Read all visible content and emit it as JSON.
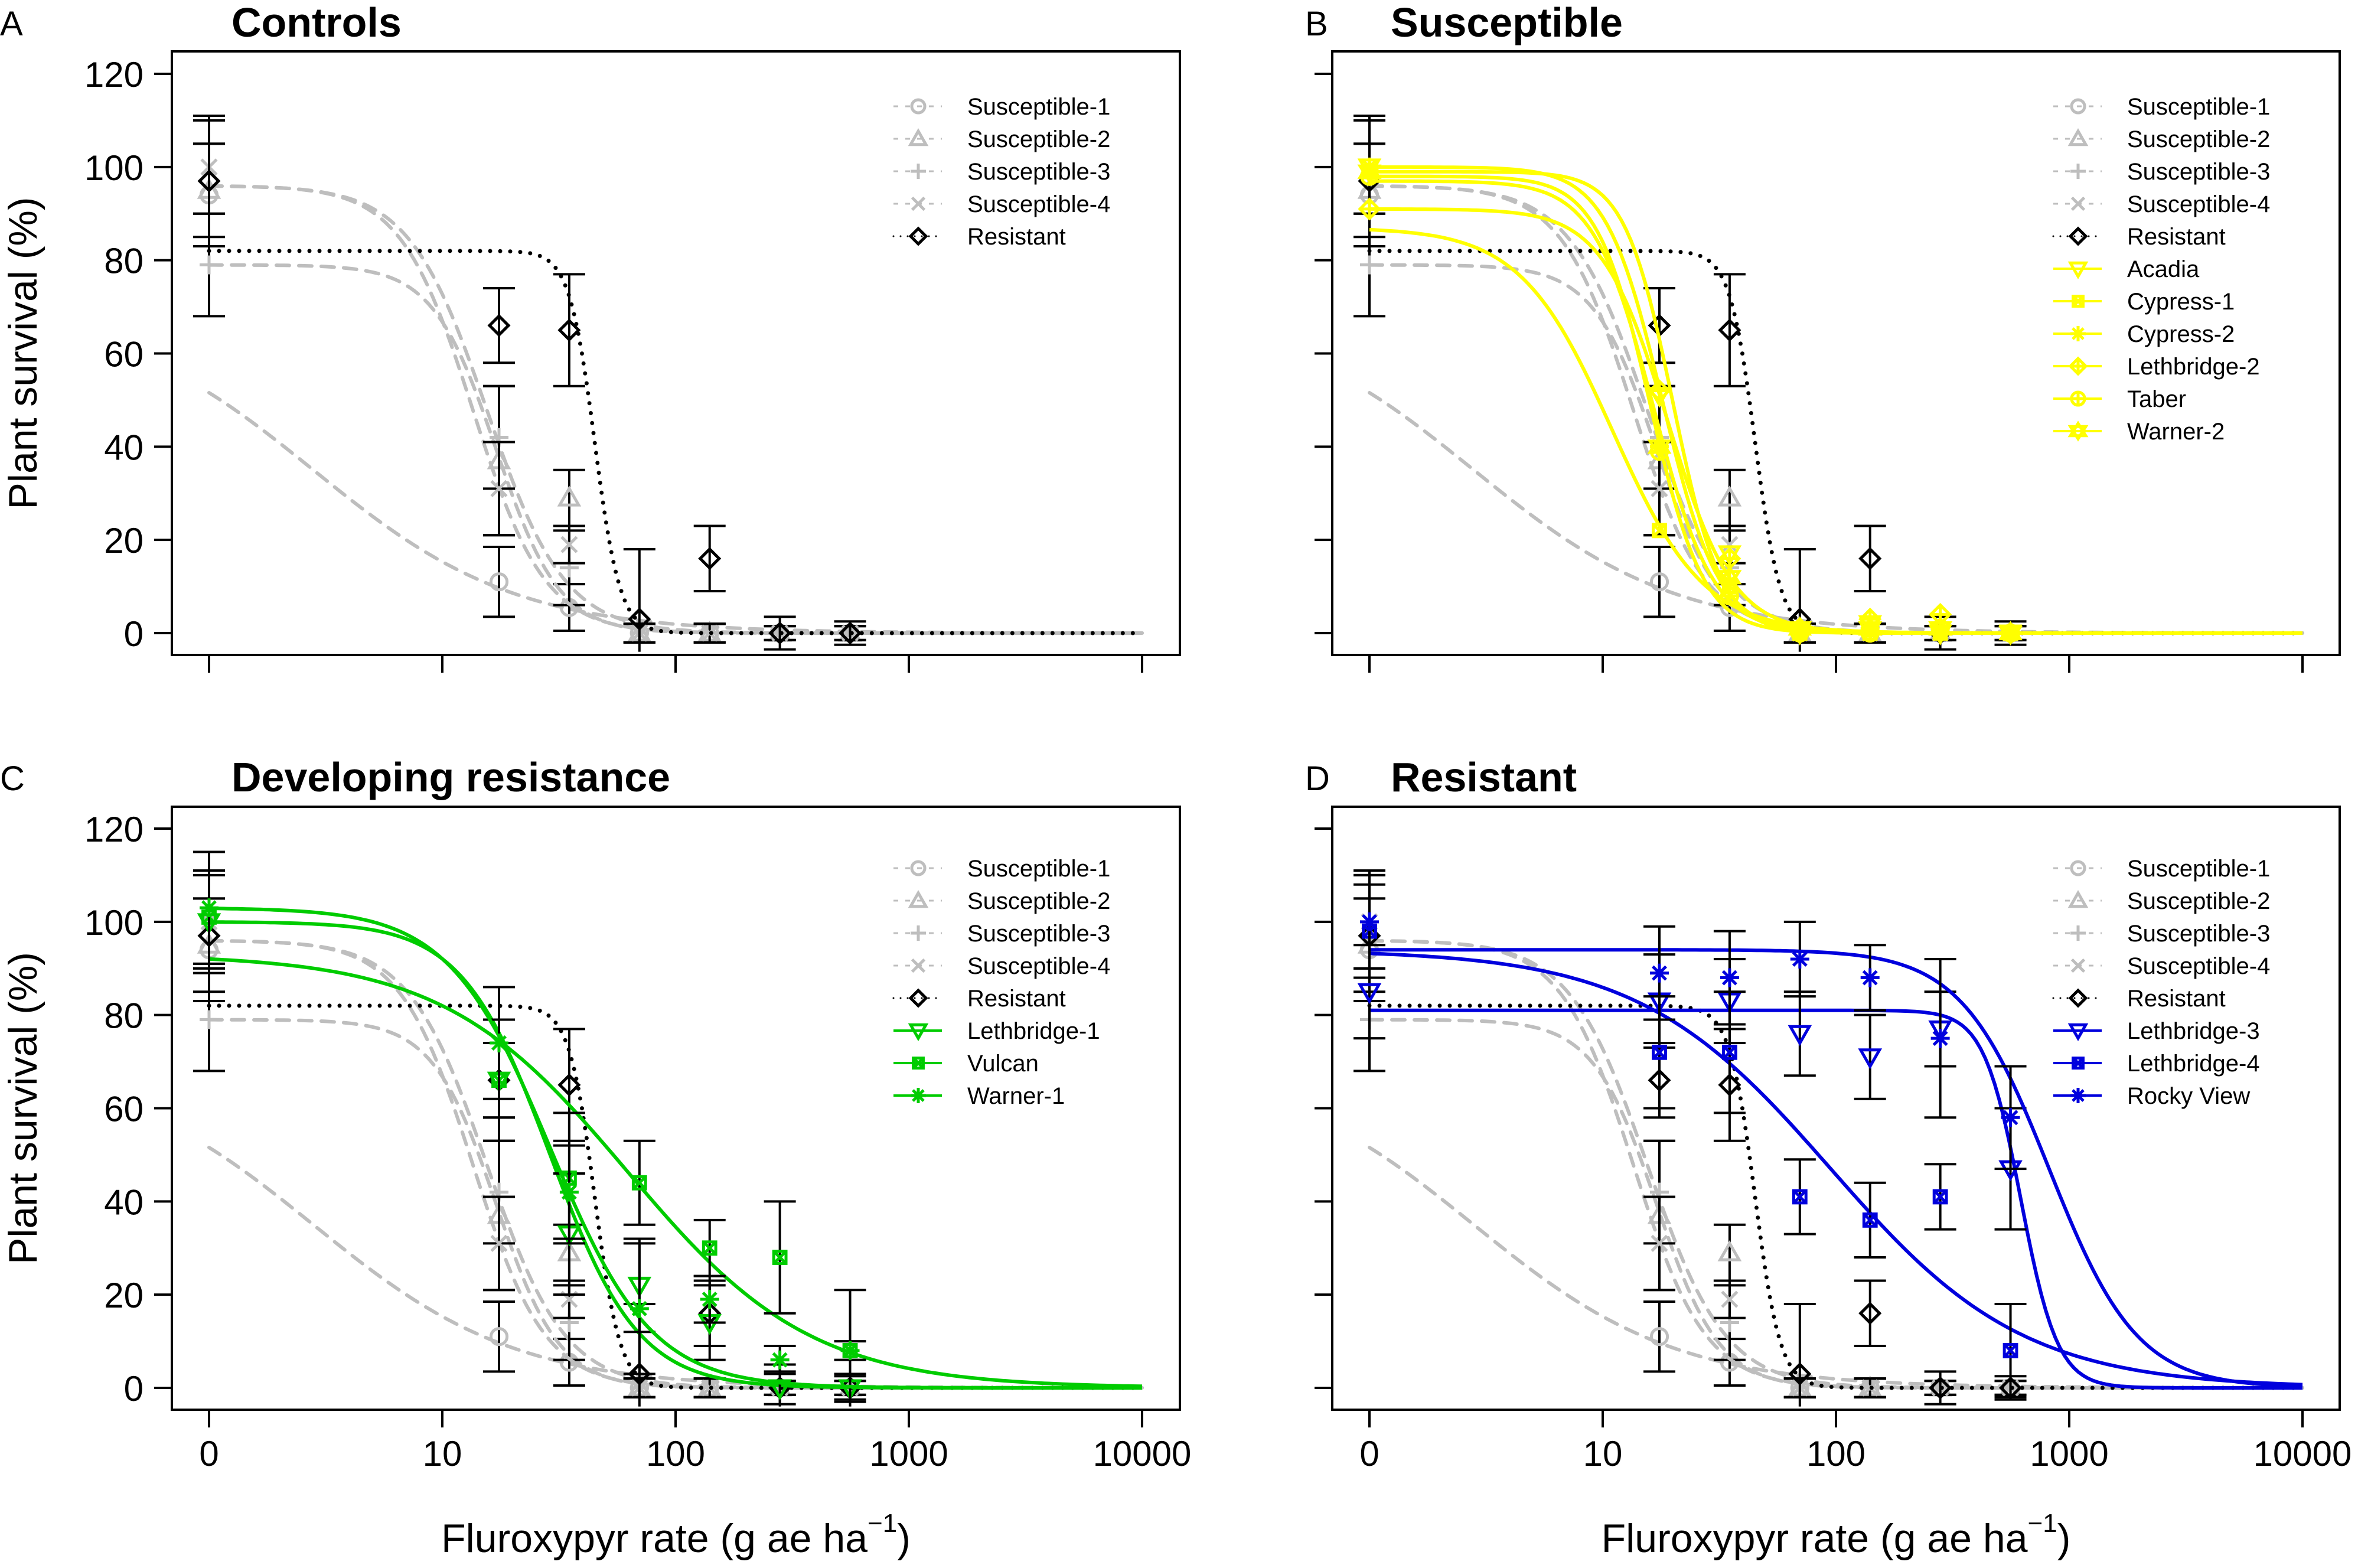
{
  "figure": {
    "description": "Dose-response of Kochia plant survival to fluroxypyr",
    "xlabel_main": "Fluroxypyr rate (g ae ha",
    "xlabel_sup": "−1",
    "xlabel_close": ")",
    "ylabel": "Plant survival (%)"
  },
  "chart_data": [
    {
      "panel": "A",
      "type": "line",
      "title": "Controls",
      "xlabel": "Fluroxypyr rate (g ae ha⁻¹)",
      "ylabel": "Plant survival (%)",
      "xscale": "log",
      "xlim": [
        1,
        10000
      ],
      "ylim": [
        0,
        120
      ],
      "xticks": [
        {
          "v": 1,
          "label": "0"
        },
        {
          "v": 10,
          "label": "10"
        },
        {
          "v": 100,
          "label": "100"
        },
        {
          "v": 1000,
          "label": "1000"
        },
        {
          "v": 10000,
          "label": "10000"
        }
      ],
      "yticks": [
        0,
        20,
        40,
        60,
        80,
        100,
        120
      ],
      "show_xtick_labels": false,
      "show_ytick_labels": true,
      "show_ylabel": true,
      "show_xlabel": false,
      "legend_position": "top-right",
      "series_refs": [
        "S1",
        "S2",
        "S3",
        "S4",
        "R"
      ]
    },
    {
      "panel": "B",
      "type": "line",
      "title": "Susceptible",
      "xlabel": "Fluroxypyr rate (g ae ha⁻¹)",
      "ylabel": "Plant survival (%)",
      "xscale": "log",
      "xlim": [
        1,
        10000
      ],
      "ylim": [
        0,
        120
      ],
      "xticks": [
        {
          "v": 1,
          "label": "0"
        },
        {
          "v": 10,
          "label": "10"
        },
        {
          "v": 100,
          "label": "100"
        },
        {
          "v": 1000,
          "label": "1000"
        },
        {
          "v": 10000,
          "label": "10000"
        }
      ],
      "yticks": [
        0,
        20,
        40,
        60,
        80,
        100,
        120
      ],
      "show_xtick_labels": false,
      "show_ytick_labels": false,
      "show_ylabel": false,
      "show_xlabel": false,
      "legend_position": "top-right",
      "series_refs": [
        "S1",
        "S2",
        "S3",
        "S4",
        "R",
        "Acadia",
        "Cypress-1",
        "Cypress-2",
        "Lethbridge-2",
        "Taber",
        "Warner-2"
      ]
    },
    {
      "panel": "C",
      "type": "line",
      "title": "Developing resistance",
      "xlabel": "Fluroxypyr rate (g ae ha⁻¹)",
      "ylabel": "Plant survival (%)",
      "xscale": "log",
      "xlim": [
        1,
        10000
      ],
      "ylim": [
        0,
        120
      ],
      "xticks": [
        {
          "v": 1,
          "label": "0"
        },
        {
          "v": 10,
          "label": "10"
        },
        {
          "v": 100,
          "label": "100"
        },
        {
          "v": 1000,
          "label": "1000"
        },
        {
          "v": 10000,
          "label": "10000"
        }
      ],
      "yticks": [
        0,
        20,
        40,
        60,
        80,
        100,
        120
      ],
      "show_xtick_labels": true,
      "show_ytick_labels": true,
      "show_ylabel": true,
      "show_xlabel": true,
      "legend_position": "top-right",
      "series_refs": [
        "S1",
        "S2",
        "S3",
        "S4",
        "R",
        "Lethbridge-1",
        "Vulcan",
        "Warner-1"
      ]
    },
    {
      "panel": "D",
      "type": "line",
      "title": "Resistant",
      "xlabel": "Fluroxypyr rate (g ae ha⁻¹)",
      "ylabel": "Plant survival (%)",
      "xscale": "log",
      "xlim": [
        1,
        10000
      ],
      "ylim": [
        0,
        120
      ],
      "xticks": [
        {
          "v": 1,
          "label": "0"
        },
        {
          "v": 10,
          "label": "10"
        },
        {
          "v": 100,
          "label": "100"
        },
        {
          "v": 1000,
          "label": "1000"
        },
        {
          "v": 10000,
          "label": "10000"
        }
      ],
      "yticks": [
        0,
        20,
        40,
        60,
        80,
        100,
        120
      ],
      "show_xtick_labels": true,
      "show_ytick_labels": false,
      "show_ylabel": false,
      "show_xlabel": true,
      "legend_position": "top-right",
      "series_refs": [
        "S1",
        "S2",
        "S3",
        "S4",
        "R",
        "Lethbridge-3",
        "Lethbridge-4",
        "Rocky View"
      ]
    }
  ],
  "doses": [
    0,
    17.5,
    35,
    70,
    140,
    280,
    560
  ],
  "series": {
    "S1": {
      "name": "Susceptible-1",
      "color": "#bebebe",
      "line": "dashed",
      "marker": "circle",
      "values": [
        94,
        11,
        5.5,
        0,
        0,
        0,
        0
      ],
      "err": [
        11,
        7.5,
        5,
        2,
        2,
        1.5,
        1.5
      ],
      "curve": {
        "upper": 70,
        "ed50": 2.8,
        "slope": 1.0
      }
    },
    "S2": {
      "name": "Susceptible-2",
      "color": "#bebebe",
      "line": "dashed",
      "marker": "triangle-up",
      "values": [
        95,
        37,
        29,
        0,
        0,
        0,
        0
      ],
      "err": [
        10,
        16,
        6,
        2,
        2,
        1.5,
        1.5
      ],
      "curve": {
        "upper": 96,
        "ed50": 15.5,
        "slope": 2.6
      }
    },
    "S3": {
      "name": "Susceptible-3",
      "color": "#bebebe",
      "line": "dashed",
      "marker": "plus",
      "values": [
        79,
        42,
        14,
        0,
        0,
        0,
        0
      ],
      "err": [
        11,
        11,
        8,
        2,
        2,
        1.5,
        1.5
      ],
      "curve": {
        "upper": 79,
        "ed50": 17,
        "slope": 3.2
      }
    },
    "S4": {
      "name": "Susceptible-4",
      "color": "#bebebe",
      "line": "dashed",
      "marker": "x",
      "values": [
        100,
        31,
        19,
        0,
        0,
        0,
        0
      ],
      "err": [
        10,
        10,
        4,
        2,
        2,
        1.5,
        1.5
      ],
      "curve": {
        "upper": 96,
        "ed50": 13.5,
        "slope": 2.8
      }
    },
    "R": {
      "name": "Resistant",
      "color": "#000000",
      "line": "dotted",
      "marker": "diamond",
      "values": [
        97,
        66,
        65,
        3,
        16,
        0,
        0
      ],
      "err": [
        14,
        8,
        12,
        15,
        7,
        3.5,
        2.5
      ],
      "curve": {
        "upper": 82,
        "ed50": 45,
        "slope": 8
      }
    },
    "Acadia": {
      "name": "Acadia",
      "color": "#ffff00",
      "line": "solid",
      "marker": "triangle-down",
      "values": [
        100,
        51,
        17,
        0,
        2,
        0,
        0
      ],
      "err": [
        0,
        0,
        0,
        0,
        0,
        0,
        0
      ],
      "curve": {
        "upper": 100,
        "ed50": 18,
        "slope": 3.6
      }
    },
    "Cypress-1": {
      "name": "Cypress-1",
      "color": "#ffff00",
      "line": "solid",
      "marker": "square-x",
      "values": [
        99,
        22,
        10,
        0,
        0,
        0,
        0
      ],
      "err": [
        0,
        0,
        0,
        0,
        0,
        0,
        0
      ],
      "curve": {
        "upper": 87,
        "ed50": 11,
        "slope": 2.2
      }
    },
    "Cypress-2": {
      "name": "Cypress-2",
      "color": "#ffff00",
      "line": "solid",
      "marker": "asterisk",
      "values": [
        100,
        40,
        11,
        1,
        1,
        0,
        0
      ],
      "err": [
        0,
        0,
        0,
        0,
        0,
        0,
        0
      ],
      "curve": {
        "upper": 98,
        "ed50": 16,
        "slope": 3.8
      }
    },
    "Lethbridge-2": {
      "name": "Lethbridge-2",
      "color": "#ffff00",
      "line": "solid",
      "marker": "diamond-plus",
      "values": [
        91,
        52,
        16,
        1,
        3,
        4,
        0
      ],
      "err": [
        0,
        0,
        0,
        0,
        0,
        0,
        0
      ],
      "curve": {
        "upper": 91,
        "ed50": 19,
        "slope": 3.1
      }
    },
    "Taber": {
      "name": "Taber",
      "color": "#ffff00",
      "line": "solid",
      "marker": "circle-plus",
      "values": [
        98,
        39,
        8,
        0,
        0,
        1,
        0
      ],
      "err": [
        0,
        0,
        0,
        0,
        0,
        0,
        0
      ],
      "curve": {
        "upper": 97,
        "ed50": 16.5,
        "slope": 3.4
      }
    },
    "Warner-2": {
      "name": "Warner-2",
      "color": "#ffff00",
      "line": "solid",
      "marker": "star-of-david",
      "values": [
        99,
        40,
        12,
        1,
        1,
        1,
        0
      ],
      "err": [
        0,
        0,
        0,
        0,
        0,
        0,
        0
      ],
      "curve": {
        "upper": 99,
        "ed50": 20,
        "slope": 4.2
      }
    },
    "Lethbridge-1": {
      "name": "Lethbridge-1",
      "color": "#00cc00",
      "line": "solid",
      "marker": "triangle-down",
      "values": [
        100,
        66,
        33,
        22,
        14,
        0,
        0
      ],
      "err": [
        11,
        13,
        13,
        10,
        8,
        5,
        3
      ],
      "curve": {
        "upper": 100,
        "ed50": 29,
        "slope": 2.3
      }
    },
    "Vulcan": {
      "name": "Vulcan",
      "color": "#00cc00",
      "line": "solid",
      "marker": "square-x",
      "values": [
        101,
        66,
        45,
        44,
        30,
        28,
        8
      ],
      "err": [
        10,
        8,
        14,
        9,
        6,
        12,
        13
      ],
      "curve": {
        "upper": 93,
        "ed50": 62,
        "slope": 1.1
      }
    },
    "Warner-1": {
      "name": "Warner-1",
      "color": "#00cc00",
      "line": "solid",
      "marker": "asterisk",
      "values": [
        103,
        74,
        42,
        17,
        19,
        6,
        8
      ],
      "err": [
        12,
        12,
        10,
        14,
        5,
        3,
        2
      ],
      "curve": {
        "upper": 103,
        "ed50": 29,
        "slope": 2.0
      }
    },
    "Lethbridge-3": {
      "name": "Lethbridge-3",
      "color": "#0000dd",
      "line": "solid",
      "marker": "triangle-down",
      "values": [
        85,
        83,
        83,
        76,
        71,
        77,
        47
      ],
      "err": [
        10,
        10,
        9,
        9,
        9,
        8,
        13
      ],
      "curve": {
        "upper": 81,
        "ed50": 620,
        "slope": 5.5
      }
    },
    "Lethbridge-4": {
      "name": "Lethbridge-4",
      "color": "#0000dd",
      "line": "solid",
      "marker": "square-x",
      "values": [
        98,
        72,
        72,
        41,
        36,
        41,
        8
      ],
      "err": [
        10,
        12,
        13,
        8,
        8,
        7,
        10
      ],
      "curve": {
        "upper": 94,
        "ed50": 95,
        "slope": 1.05
      }
    },
    "Rocky View": {
      "name": "Rocky View",
      "color": "#0000dd",
      "line": "solid",
      "marker": "asterisk",
      "values": [
        100,
        89,
        88,
        92,
        88,
        75,
        58
      ],
      "err": [
        10,
        10,
        10,
        8,
        7,
        17,
        11
      ],
      "curve": {
        "upper": 94,
        "ed50": 820,
        "slope": 2.3
      }
    }
  }
}
